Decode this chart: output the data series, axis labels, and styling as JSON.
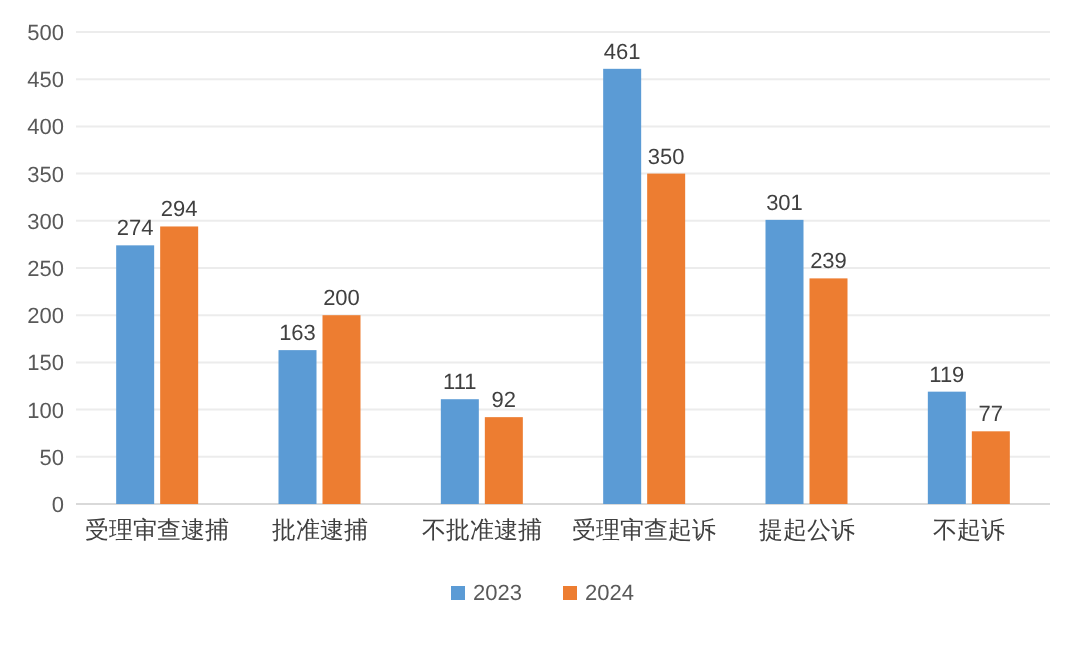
{
  "chart_data": {
    "type": "bar",
    "categories": [
      "受理审查逮捕",
      "批准逮捕",
      "不批准逮捕",
      "受理审查起诉",
      "提起公诉",
      "不起诉"
    ],
    "series": [
      {
        "name": "2023",
        "color": "#5b9bd5",
        "values": [
          274,
          163,
          111,
          461,
          301,
          119
        ]
      },
      {
        "name": "2024",
        "color": "#ed7d31",
        "values": [
          294,
          200,
          92,
          350,
          239,
          77
        ]
      }
    ],
    "ylim": [
      0,
      500
    ],
    "yticks": [
      0,
      50,
      100,
      150,
      200,
      250,
      300,
      350,
      400,
      450,
      500
    ],
    "grid": "y",
    "legend": "bottom",
    "data_labels": true
  }
}
